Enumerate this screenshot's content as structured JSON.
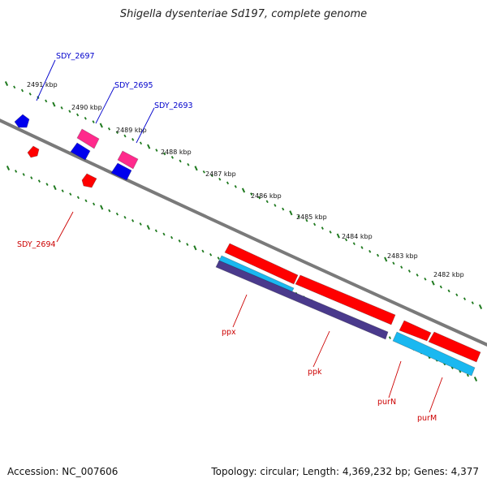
{
  "title": "Shigella dysenteriae Sd197, complete genome",
  "footer": {
    "accession": "Accession: NC_007606",
    "topology": "Topology: circular; Length: 4,369,232 bp; Genes: 4,377"
  },
  "scale_labels": [
    "2491 kbp",
    "2490 kbp",
    "2489 kbp",
    "2488 kbp",
    "2487 kbp",
    "2486 kbp",
    "2485 kbp",
    "2484 kbp",
    "2483 kbp",
    "2482 kbp"
  ],
  "gene_labels": {
    "sdy_2697": "SDY_2697",
    "sdy_2695": "SDY_2695",
    "sdy_2693": "SDY_2693",
    "sdy_2694": "SDY_2694",
    "ppx": "ppx",
    "ppk": "ppk",
    "purn": "purN",
    "purm": "purM"
  },
  "colors": {
    "backbone": "#7a7a7a",
    "tick": "#1f7a1f",
    "cds_forward": "#ff0000",
    "cds_reverse": "#0000ee",
    "pink": "#ff2a8c",
    "cyan": "#1ab8f0",
    "purple": "#4a3a8c",
    "label_blue": "#0000cc",
    "label_red": "#cc0000"
  },
  "icons": {
    "gene": "gene-arrow-icon"
  }
}
